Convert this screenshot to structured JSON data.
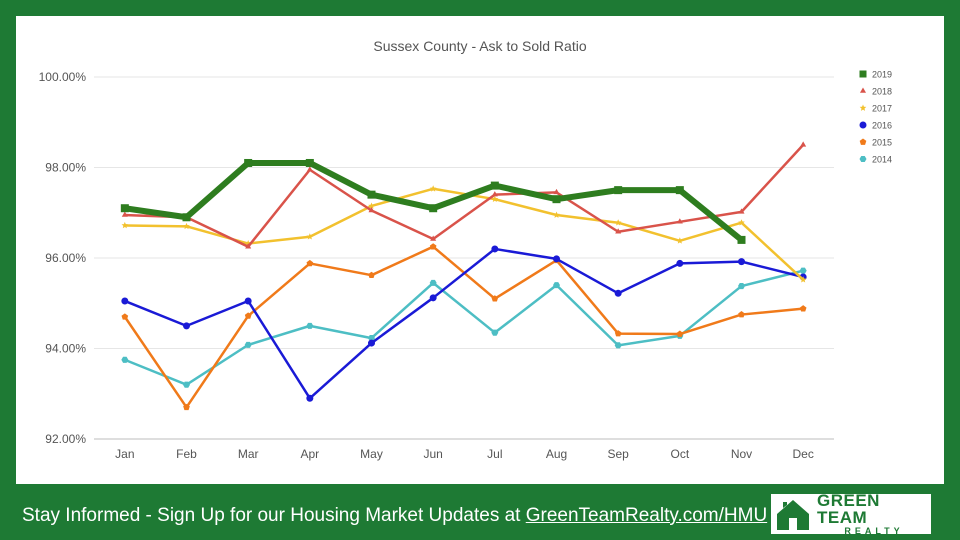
{
  "chart_data": {
    "type": "line",
    "title": "Sussex County - Ask to Sold Ratio",
    "categories": [
      "Jan",
      "Feb",
      "Mar",
      "Apr",
      "May",
      "Jun",
      "Jul",
      "Aug",
      "Sep",
      "Oct",
      "Nov",
      "Dec"
    ],
    "ylim": [
      92,
      100
    ],
    "yticks": [
      92,
      94,
      96,
      98,
      100
    ],
    "ytick_labels": [
      "92.00%",
      "94.00%",
      "96.00%",
      "98.00%",
      "100.00%"
    ],
    "grid": true,
    "legend_position": "right",
    "series": [
      {
        "name": "2019",
        "color": "#2e7d1f",
        "marker": "square",
        "width": 6,
        "values": [
          97.1,
          96.9,
          98.1,
          98.1,
          97.4,
          97.1,
          97.6,
          97.3,
          97.5,
          97.5,
          96.4,
          null
        ]
      },
      {
        "name": "2018",
        "color": "#d9534a",
        "marker": "triangle",
        "width": 2.5,
        "values": [
          96.95,
          96.9,
          96.25,
          97.95,
          97.05,
          96.42,
          97.4,
          97.45,
          96.58,
          96.8,
          97.02,
          98.5
        ]
      },
      {
        "name": "2017",
        "color": "#f2c12e",
        "marker": "star",
        "width": 2.5,
        "values": [
          96.72,
          96.7,
          96.32,
          96.47,
          97.15,
          97.53,
          97.3,
          96.95,
          96.78,
          96.38,
          96.78,
          95.52
        ]
      },
      {
        "name": "2016",
        "color": "#1a1ad6",
        "marker": "circle",
        "width": 2.5,
        "values": [
          95.05,
          94.5,
          95.05,
          92.9,
          94.12,
          95.12,
          96.2,
          95.98,
          95.22,
          95.88,
          95.92,
          95.58
        ]
      },
      {
        "name": "2015",
        "color": "#f07a1a",
        "marker": "pentagon",
        "width": 2.5,
        "values": [
          94.7,
          92.7,
          94.72,
          95.88,
          95.62,
          96.25,
          95.1,
          95.95,
          94.33,
          94.32,
          94.75,
          94.88
        ]
      },
      {
        "name": "2014",
        "color": "#4dbec4",
        "marker": "hexagon",
        "width": 2.5,
        "values": [
          93.75,
          93.2,
          94.08,
          94.5,
          94.23,
          95.45,
          94.35,
          95.4,
          94.07,
          94.28,
          95.38,
          95.72
        ]
      }
    ]
  },
  "footer": {
    "text": "Stay Informed - Sign Up for our Housing Market Updates at ",
    "link": "GreenTeamRealty.com/HMU"
  },
  "logo": {
    "line1": "GREEN TEAM",
    "line2": "REALTY"
  },
  "colors": {
    "brand_green": "#1e7a34"
  }
}
